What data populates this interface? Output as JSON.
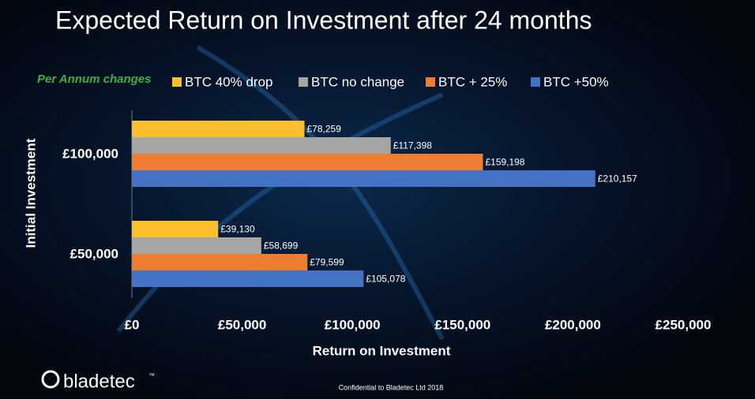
{
  "chart_data": {
    "type": "hbar",
    "title": "Expected Return on Investment after 24 months",
    "legend_title": "Per Annum changes",
    "xlabel": "Return on Investment",
    "ylabel": "Initial Investment",
    "categories": [
      "£100,000",
      "£50,000"
    ],
    "series": [
      {
        "name": "BTC 40% drop",
        "color": "#fbbf2d",
        "values": [
          78259,
          39130
        ],
        "value_labels": [
          "£78,259",
          "£39,130"
        ]
      },
      {
        "name": "BTC no change",
        "color": "#a5a5a5",
        "values": [
          117398,
          58699
        ],
        "value_labels": [
          "£117,398",
          "£58,699"
        ]
      },
      {
        "name": "BTC + 25%",
        "color": "#ed7d31",
        "values": [
          159198,
          79599
        ],
        "value_labels": [
          "£159,198",
          "£79,599"
        ]
      },
      {
        "name": "BTC +50%",
        "color": "#4472c4",
        "values": [
          210157,
          105078
        ],
        "value_labels": [
          "£210,157",
          "£105,078"
        ]
      }
    ],
    "xlim": [
      0,
      250000
    ],
    "xticks": [
      {
        "value": 0,
        "label": "£0"
      },
      {
        "value": 50000,
        "label": "£50,000"
      },
      {
        "value": 100000,
        "label": "£100,000"
      },
      {
        "value": 150000,
        "label": "£150,000"
      },
      {
        "value": 200000,
        "label": "£200,000"
      },
      {
        "value": 250000,
        "label": "£250,000"
      }
    ]
  },
  "footer": "Confidential to Bladetec Ltd 2018",
  "brand": "bladetec",
  "brand_mark": "™"
}
